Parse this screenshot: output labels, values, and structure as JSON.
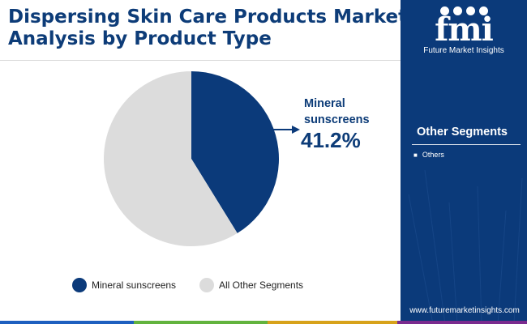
{
  "title_lines": [
    "Dispersing Skin Care Products Market",
    "Analysis by Product Type"
  ],
  "brand": {
    "logo_word": "fmi",
    "logo_sub": "Future Market Insights",
    "website": "www.futuremarketinsights.com"
  },
  "side_panel": {
    "heading": "Other Segments",
    "items": [
      "Others"
    ]
  },
  "colors": {
    "primary": "#0b3a7a",
    "secondary": "#dcdcdc",
    "callout_text": "#0d3c78",
    "bottom_bar": [
      "#1e5fbf",
      "#62b33d",
      "#d7a21a",
      "#7a2b8f"
    ]
  },
  "chart_data": {
    "type": "pie",
    "slices": [
      {
        "label": "Mineral sunscreens",
        "value": 41.2,
        "color": "#0b3a7a"
      },
      {
        "label": "All Other Segments",
        "value": 58.8,
        "color": "#dcdcdc"
      }
    ],
    "start_angle": "12 o'clock, clockwise",
    "callout": {
      "label_lines": [
        "Mineral",
        "sunscreens"
      ],
      "value_text": "41.2%"
    },
    "legend": [
      "Mineral sunscreens",
      "All Other Segments"
    ],
    "legend_position": "bottom"
  }
}
